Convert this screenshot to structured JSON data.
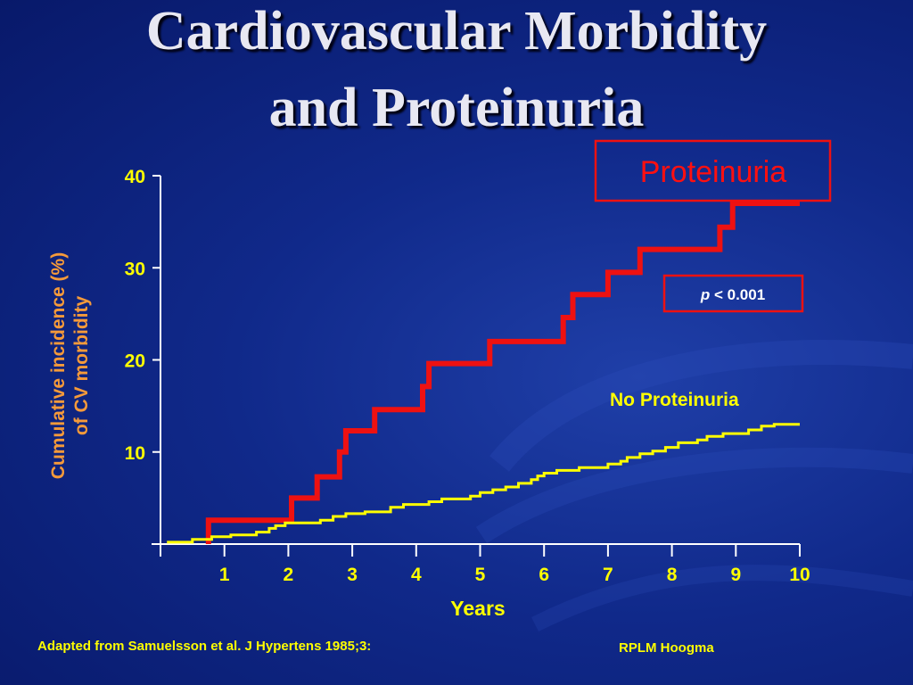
{
  "slide": {
    "title_line1": "Cardiovascular Morbidity",
    "title_line2": "and Proteinuria",
    "footnote_left": "Adapted from Samuelsson et al. J Hypertens 1985;3:",
    "footnote_right": "RPLM Hoogma"
  },
  "chart_data": {
    "type": "line",
    "title": "",
    "xlabel": "Years",
    "ylabel_line1": "Cumulative incidence (%)",
    "ylabel_line2": "of CV morbidity",
    "xlim": [
      0,
      10
    ],
    "ylim": [
      0,
      40
    ],
    "xticks": [
      "1",
      "2",
      "3",
      "4",
      "5",
      "6",
      "7",
      "8",
      "9",
      "10"
    ],
    "yticks": [
      "10",
      "20",
      "30",
      "40"
    ],
    "grid": false,
    "series": [
      {
        "name": "Proteinuria",
        "color": "#ee1111",
        "step": true,
        "points": [
          [
            0.75,
            0
          ],
          [
            0.75,
            2.6
          ],
          [
            2.05,
            2.6
          ],
          [
            2.05,
            5.0
          ],
          [
            2.45,
            5.0
          ],
          [
            2.45,
            7.3
          ],
          [
            2.8,
            7.3
          ],
          [
            2.8,
            10.0
          ],
          [
            2.9,
            10.0
          ],
          [
            2.9,
            12.3
          ],
          [
            3.35,
            12.3
          ],
          [
            3.35,
            14.6
          ],
          [
            4.1,
            14.6
          ],
          [
            4.1,
            17.1
          ],
          [
            4.2,
            17.1
          ],
          [
            4.2,
            19.6
          ],
          [
            5.15,
            19.6
          ],
          [
            5.15,
            22.0
          ],
          [
            6.3,
            22.0
          ],
          [
            6.3,
            24.6
          ],
          [
            6.45,
            24.6
          ],
          [
            6.45,
            27.1
          ],
          [
            7.0,
            27.1
          ],
          [
            7.0,
            29.5
          ],
          [
            7.5,
            29.5
          ],
          [
            7.5,
            32.0
          ],
          [
            8.75,
            32.0
          ],
          [
            8.75,
            34.4
          ],
          [
            8.95,
            34.4
          ],
          [
            8.95,
            37.0
          ],
          [
            10.0,
            37.0
          ]
        ]
      },
      {
        "name": "No  Proteinuria",
        "color": "#ffff00",
        "step": true,
        "points": [
          [
            0.1,
            0.2
          ],
          [
            0.5,
            0.2
          ],
          [
            0.5,
            0.5
          ],
          [
            0.8,
            0.5
          ],
          [
            0.8,
            0.8
          ],
          [
            1.1,
            0.8
          ],
          [
            1.1,
            1.0
          ],
          [
            1.5,
            1.0
          ],
          [
            1.5,
            1.3
          ],
          [
            1.7,
            1.3
          ],
          [
            1.7,
            1.7
          ],
          [
            1.8,
            1.7
          ],
          [
            1.8,
            2.0
          ],
          [
            1.95,
            2.0
          ],
          [
            1.95,
            2.3
          ],
          [
            2.5,
            2.3
          ],
          [
            2.5,
            2.6
          ],
          [
            2.7,
            2.6
          ],
          [
            2.7,
            3.0
          ],
          [
            2.9,
            3.0
          ],
          [
            2.9,
            3.3
          ],
          [
            3.2,
            3.3
          ],
          [
            3.2,
            3.5
          ],
          [
            3.6,
            3.5
          ],
          [
            3.6,
            4.0
          ],
          [
            3.8,
            4.0
          ],
          [
            3.8,
            4.3
          ],
          [
            4.2,
            4.3
          ],
          [
            4.2,
            4.6
          ],
          [
            4.4,
            4.6
          ],
          [
            4.4,
            4.9
          ],
          [
            4.85,
            4.9
          ],
          [
            4.85,
            5.2
          ],
          [
            5.0,
            5.2
          ],
          [
            5.0,
            5.6
          ],
          [
            5.2,
            5.6
          ],
          [
            5.2,
            5.9
          ],
          [
            5.4,
            5.9
          ],
          [
            5.4,
            6.2
          ],
          [
            5.6,
            6.2
          ],
          [
            5.6,
            6.6
          ],
          [
            5.8,
            6.6
          ],
          [
            5.8,
            7.0
          ],
          [
            5.9,
            7.0
          ],
          [
            5.9,
            7.4
          ],
          [
            6.0,
            7.4
          ],
          [
            6.0,
            7.7
          ],
          [
            6.2,
            7.7
          ],
          [
            6.2,
            8.0
          ],
          [
            6.55,
            8.0
          ],
          [
            6.55,
            8.3
          ],
          [
            7.0,
            8.3
          ],
          [
            7.0,
            8.7
          ],
          [
            7.2,
            8.7
          ],
          [
            7.2,
            9.0
          ],
          [
            7.3,
            9.0
          ],
          [
            7.3,
            9.4
          ],
          [
            7.5,
            9.4
          ],
          [
            7.5,
            9.8
          ],
          [
            7.7,
            9.8
          ],
          [
            7.7,
            10.1
          ],
          [
            7.9,
            10.1
          ],
          [
            7.9,
            10.5
          ],
          [
            8.1,
            10.5
          ],
          [
            8.1,
            11.0
          ],
          [
            8.4,
            11.0
          ],
          [
            8.4,
            11.3
          ],
          [
            8.55,
            11.3
          ],
          [
            8.55,
            11.7
          ],
          [
            8.8,
            11.7
          ],
          [
            8.8,
            12.0
          ],
          [
            9.2,
            12.0
          ],
          [
            9.2,
            12.4
          ],
          [
            9.4,
            12.4
          ],
          [
            9.4,
            12.8
          ],
          [
            9.6,
            12.8
          ],
          [
            9.6,
            13.0
          ],
          [
            10.0,
            13.0
          ]
        ]
      }
    ],
    "annotations": {
      "proteinuria_box": "Proteinuria",
      "p_italic": "p",
      "p_rest": " < 0.001",
      "no_proteinuria_label": "No  Proteinuria"
    },
    "colors": {
      "axis": "#ffffff",
      "tick_labels": "#ffff00",
      "ylabel": "#f59a3a",
      "box_border": "#ee1111"
    }
  }
}
